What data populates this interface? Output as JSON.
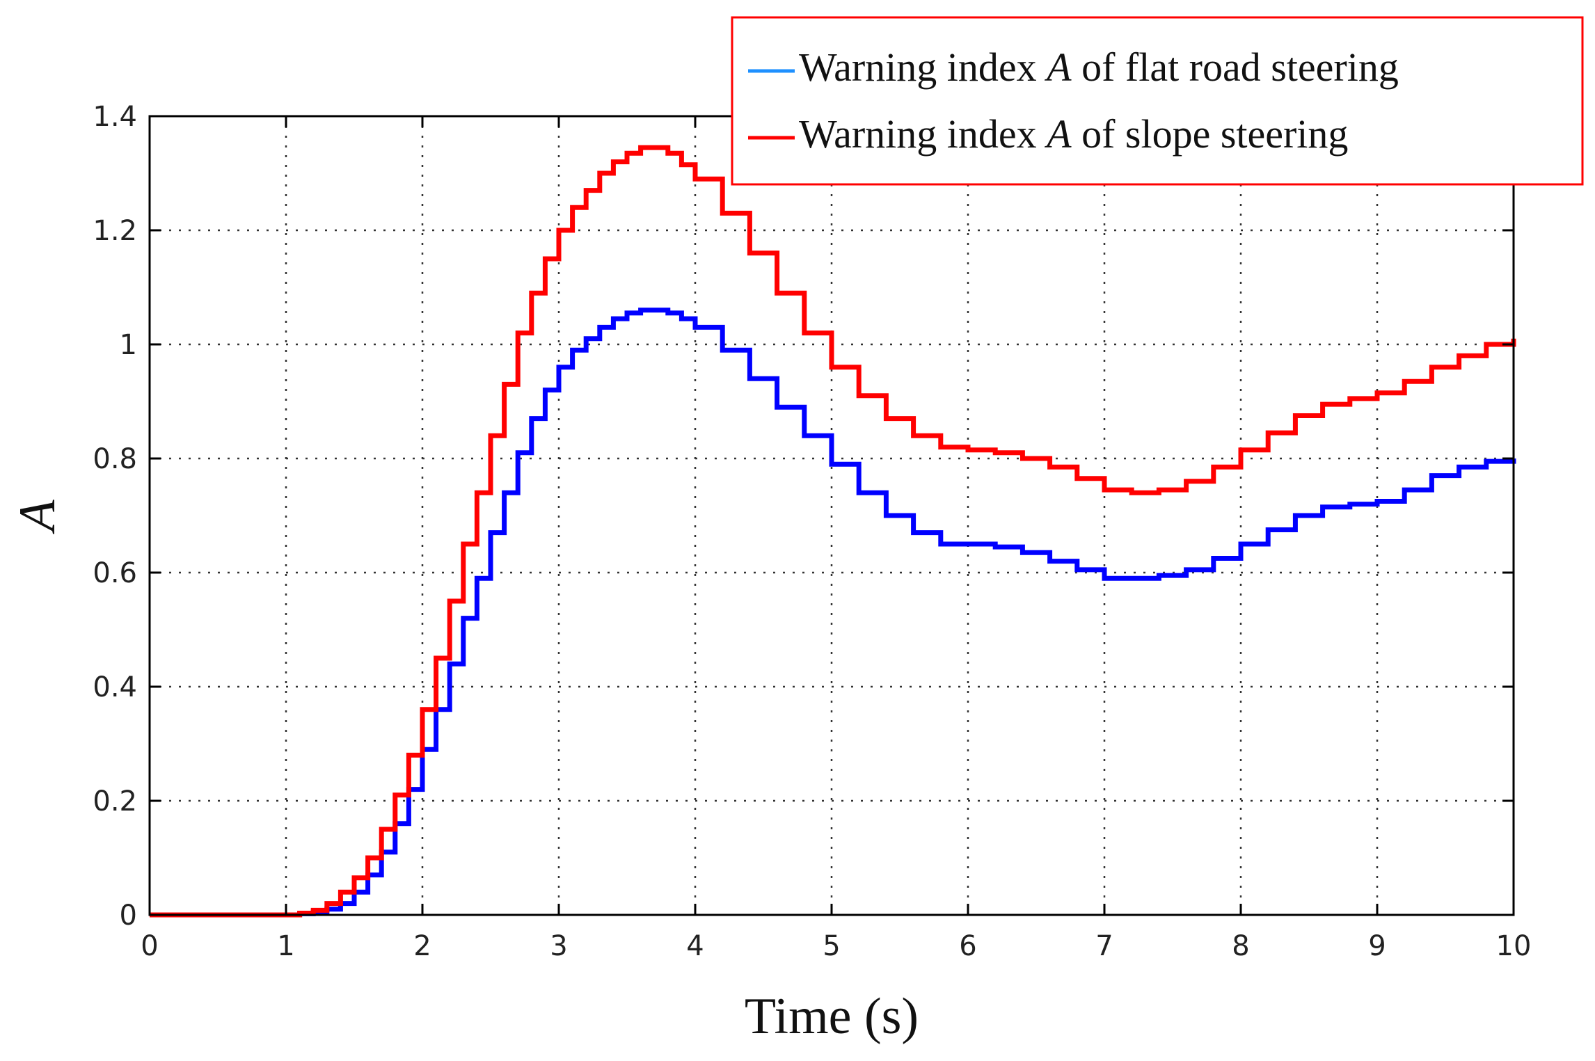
{
  "chart_data": {
    "type": "line",
    "title": "",
    "xlabel": "Time (s)",
    "ylabel": "A",
    "xlim": [
      0,
      10
    ],
    "ylim": [
      0,
      1.4
    ],
    "xticks": [
      0,
      1,
      2,
      3,
      4,
      5,
      6,
      7,
      8,
      9,
      10
    ],
    "yticks": [
      0,
      0.2,
      0.4,
      0.6,
      0.8,
      1,
      1.2,
      1.4
    ],
    "xtick_labels": [
      "0",
      "1",
      "2",
      "3",
      "4",
      "5",
      "6",
      "7",
      "8",
      "9",
      "10"
    ],
    "ytick_labels": [
      "0",
      "0.2",
      "0.4",
      "0.6",
      "0.8",
      "1",
      "1.2",
      "1.4"
    ],
    "grid": true,
    "legend_position": "top-right",
    "step": true,
    "series": [
      {
        "name": "Warning index A of flat road steering",
        "legend_prefix": "Warning index ",
        "legend_var": "A",
        "legend_suffix": " of flat road steering",
        "color": "#0000ff",
        "legend_color": "#1e90ff",
        "x": [
          0,
          1,
          1.1,
          1.2,
          1.3,
          1.4,
          1.5,
          1.6,
          1.7,
          1.8,
          1.9,
          2.0,
          2.1,
          2.2,
          2.3,
          2.4,
          2.5,
          2.6,
          2.7,
          2.8,
          2.9,
          3.0,
          3.1,
          3.2,
          3.3,
          3.4,
          3.5,
          3.6,
          3.7,
          3.8,
          3.9,
          4.0,
          4.2,
          4.4,
          4.6,
          4.8,
          5.0,
          5.2,
          5.4,
          5.6,
          5.8,
          6.0,
          6.2,
          6.4,
          6.6,
          6.8,
          7.0,
          7.2,
          7.4,
          7.6,
          7.8,
          8.0,
          8.2,
          8.4,
          8.6,
          8.8,
          9.0,
          9.2,
          9.4,
          9.6,
          9.8,
          10.0
        ],
        "values": [
          0,
          0,
          0.002,
          0.005,
          0.01,
          0.02,
          0.04,
          0.07,
          0.11,
          0.16,
          0.22,
          0.29,
          0.36,
          0.44,
          0.52,
          0.59,
          0.67,
          0.74,
          0.81,
          0.87,
          0.92,
          0.96,
          0.99,
          1.01,
          1.03,
          1.045,
          1.055,
          1.06,
          1.06,
          1.055,
          1.045,
          1.03,
          0.99,
          0.94,
          0.89,
          0.84,
          0.79,
          0.74,
          0.7,
          0.67,
          0.65,
          0.65,
          0.645,
          0.635,
          0.62,
          0.605,
          0.59,
          0.59,
          0.595,
          0.605,
          0.625,
          0.65,
          0.675,
          0.7,
          0.715,
          0.72,
          0.725,
          0.745,
          0.77,
          0.785,
          0.795,
          0.8
        ]
      },
      {
        "name": "Warning index A of slope steering",
        "legend_prefix": "Warning index ",
        "legend_var": "A",
        "legend_suffix": " of slope steering",
        "color": "#ff0000",
        "legend_color": "#ff0000",
        "x": [
          0,
          1,
          1.1,
          1.2,
          1.3,
          1.4,
          1.5,
          1.6,
          1.7,
          1.8,
          1.9,
          2.0,
          2.1,
          2.2,
          2.3,
          2.4,
          2.5,
          2.6,
          2.7,
          2.8,
          2.9,
          3.0,
          3.1,
          3.2,
          3.3,
          3.4,
          3.5,
          3.6,
          3.7,
          3.8,
          3.9,
          4.0,
          4.2,
          4.4,
          4.6,
          4.8,
          5.0,
          5.2,
          5.4,
          5.6,
          5.8,
          6.0,
          6.2,
          6.4,
          6.6,
          6.8,
          7.0,
          7.2,
          7.4,
          7.6,
          7.8,
          8.0,
          8.2,
          8.4,
          8.6,
          8.8,
          9.0,
          9.2,
          9.4,
          9.6,
          9.8,
          10.0
        ],
        "values": [
          0,
          0,
          0.003,
          0.008,
          0.02,
          0.04,
          0.065,
          0.1,
          0.15,
          0.21,
          0.28,
          0.36,
          0.45,
          0.55,
          0.65,
          0.74,
          0.84,
          0.93,
          1.02,
          1.09,
          1.15,
          1.2,
          1.24,
          1.27,
          1.3,
          1.32,
          1.335,
          1.345,
          1.345,
          1.335,
          1.315,
          1.29,
          1.23,
          1.16,
          1.09,
          1.02,
          0.96,
          0.91,
          0.87,
          0.84,
          0.82,
          0.815,
          0.81,
          0.8,
          0.785,
          0.765,
          0.745,
          0.74,
          0.745,
          0.76,
          0.785,
          0.815,
          0.845,
          0.875,
          0.895,
          0.905,
          0.915,
          0.935,
          0.96,
          0.98,
          1.0,
          1.01
        ]
      }
    ]
  }
}
